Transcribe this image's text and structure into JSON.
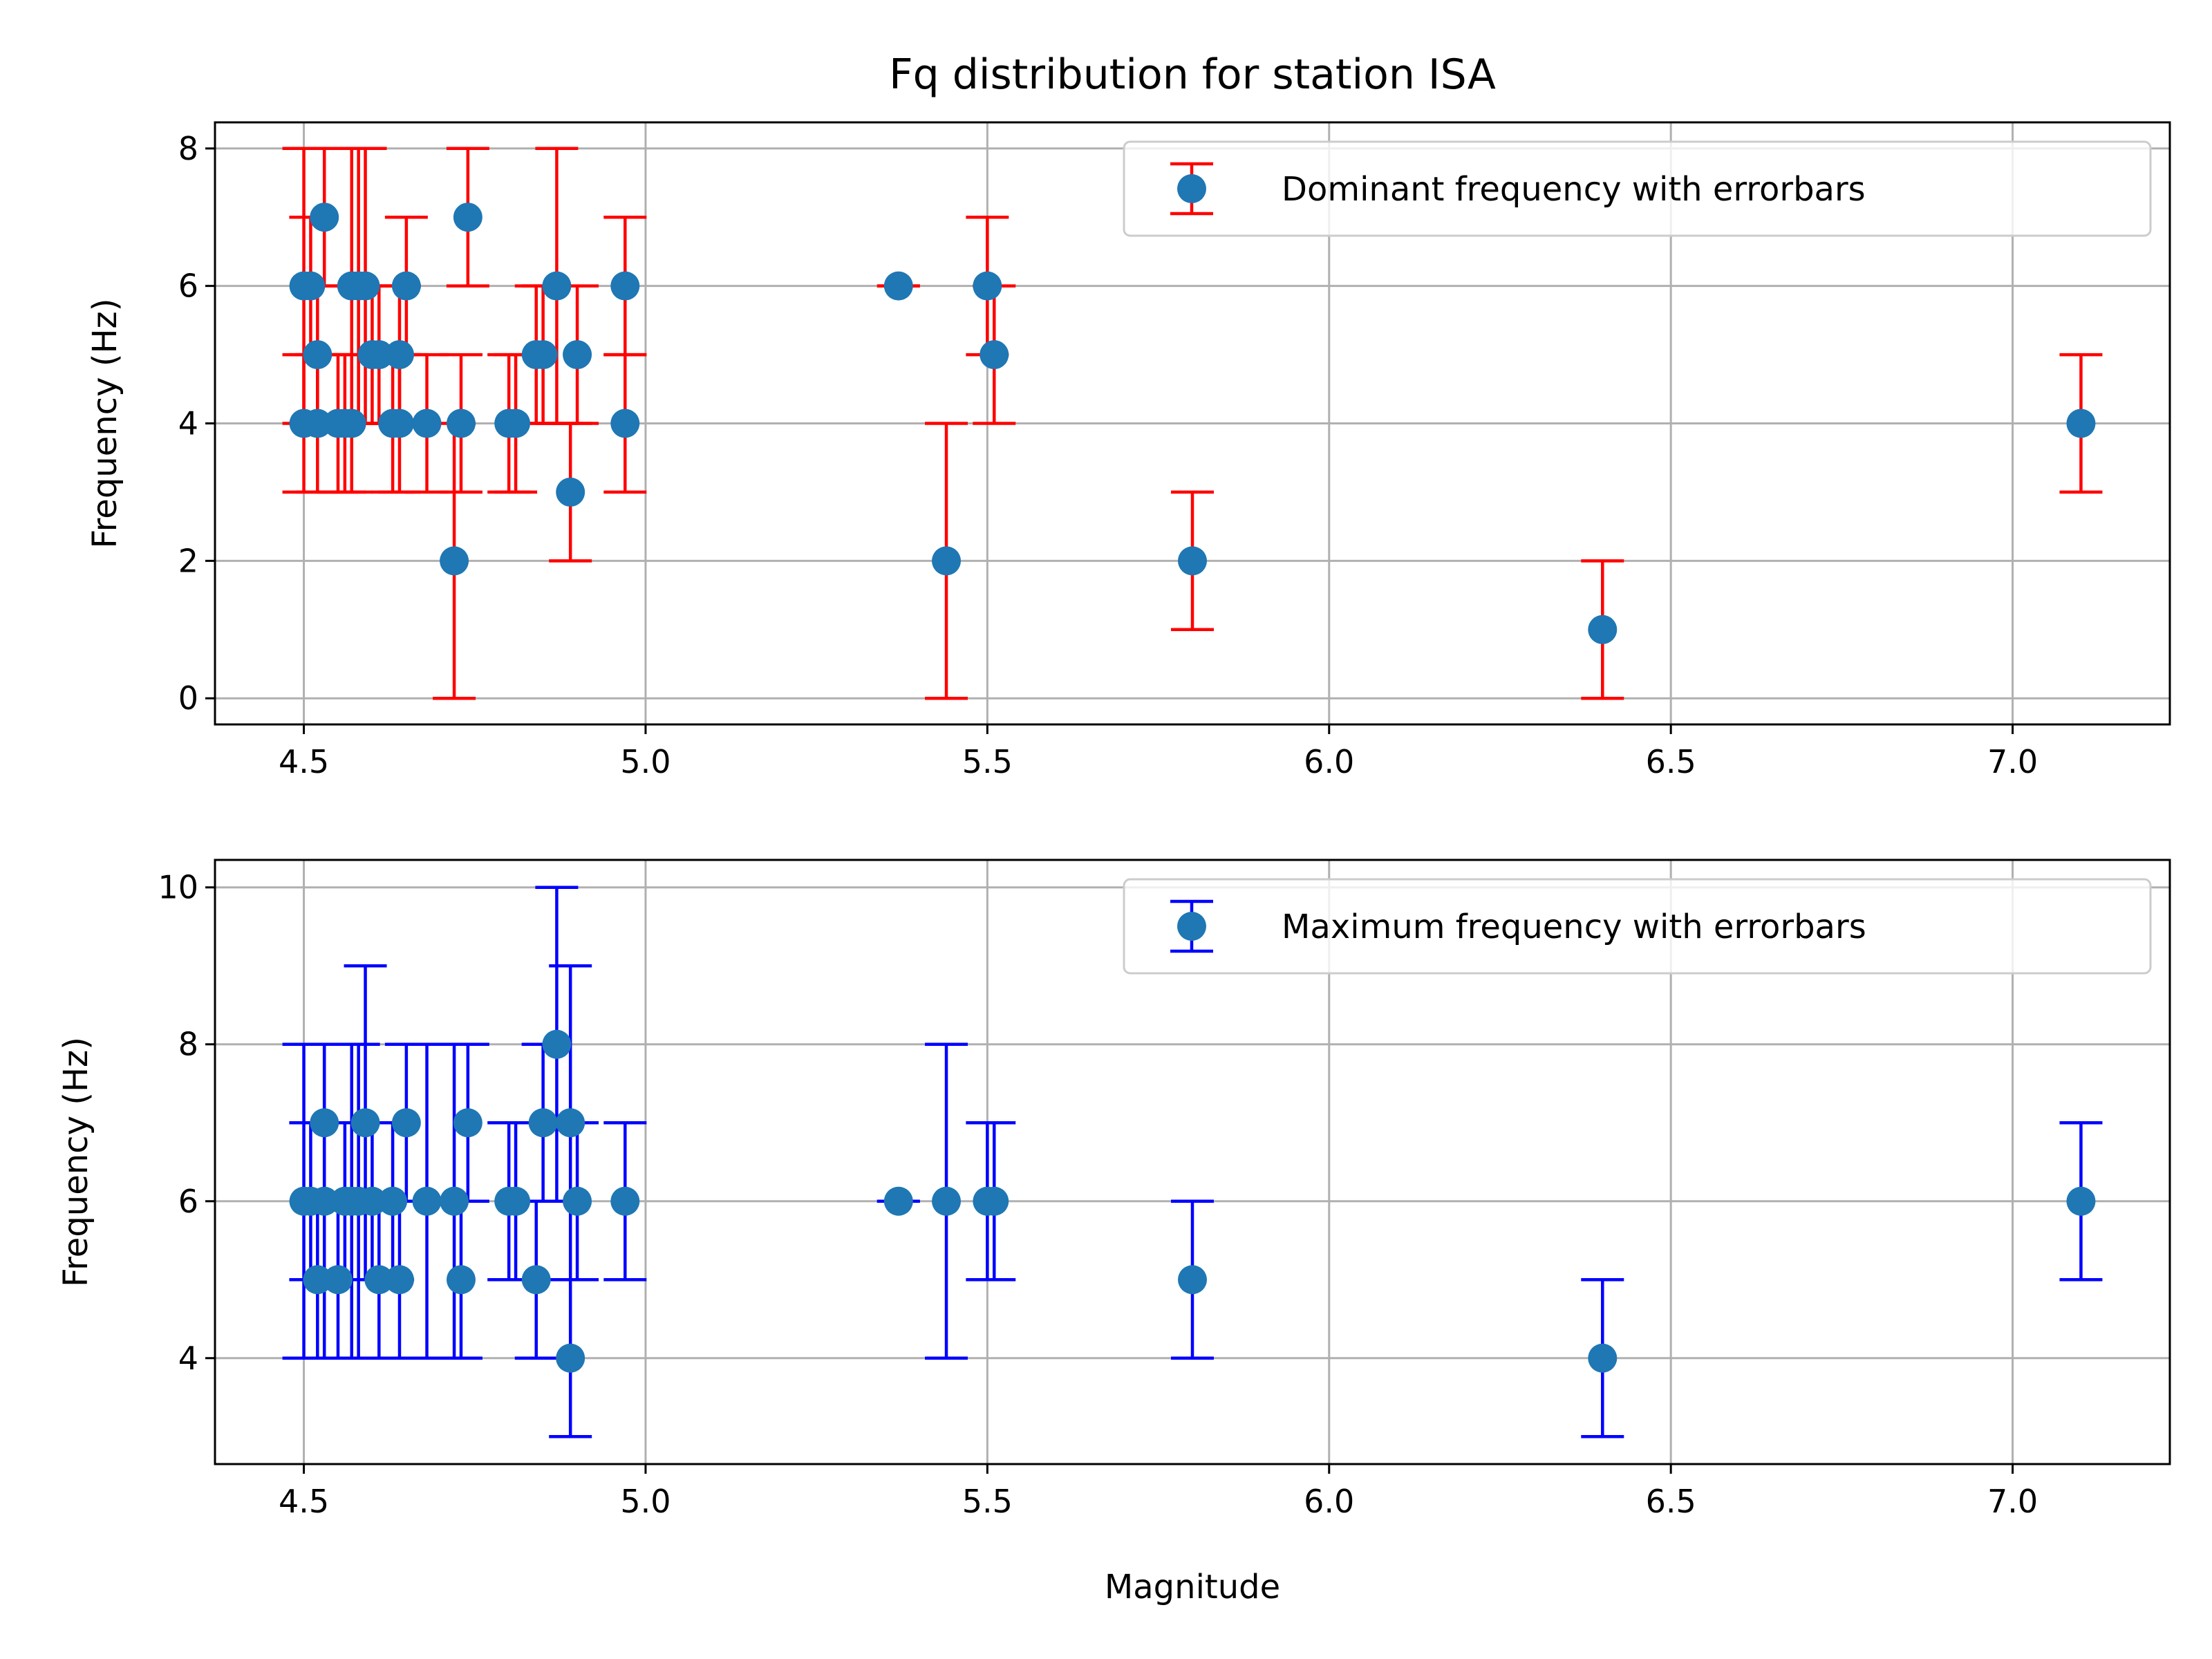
{
  "chart_data": [
    {
      "type": "scatter",
      "title": "Fq distribution for station ISA",
      "xlabel": "",
      "ylabel": "Frequency (Hz)",
      "xlim": [
        4.37,
        7.23
      ],
      "ylim": [
        -0.38,
        8.38
      ],
      "xticks": [
        4.5,
        5.0,
        5.5,
        6.0,
        6.5,
        7.0
      ],
      "xtick_labels": [
        "4.5",
        "5.0",
        "5.5",
        "6.0",
        "6.5",
        "7.0"
      ],
      "yticks": [
        0,
        2,
        4,
        6,
        8
      ],
      "ytick_labels": [
        "0",
        "2",
        "4",
        "6",
        "8"
      ],
      "grid": true,
      "legend": {
        "text": "Dominant frequency with errorbars",
        "placement": "top-right"
      },
      "errorbar_color": "#ff0000",
      "marker_color": "#1f77b4",
      "points": [
        {
          "x": 4.5,
          "y": 6,
          "err": 2
        },
        {
          "x": 4.5,
          "y": 4,
          "err": 1
        },
        {
          "x": 4.51,
          "y": 6,
          "err": 1
        },
        {
          "x": 4.52,
          "y": 5,
          "err": 1
        },
        {
          "x": 4.52,
          "y": 4,
          "err": 1
        },
        {
          "x": 4.53,
          "y": 7,
          "err": 1
        },
        {
          "x": 4.55,
          "y": 4,
          "err": 1
        },
        {
          "x": 4.56,
          "y": 4,
          "err": 1
        },
        {
          "x": 4.57,
          "y": 6,
          "err": 2
        },
        {
          "x": 4.57,
          "y": 4,
          "err": 1
        },
        {
          "x": 4.58,
          "y": 6,
          "err": 2
        },
        {
          "x": 4.59,
          "y": 6,
          "err": 2
        },
        {
          "x": 4.6,
          "y": 5,
          "err": 1
        },
        {
          "x": 4.61,
          "y": 5,
          "err": 1
        },
        {
          "x": 4.63,
          "y": 4,
          "err": 1
        },
        {
          "x": 4.64,
          "y": 5,
          "err": 1
        },
        {
          "x": 4.64,
          "y": 4,
          "err": 1
        },
        {
          "x": 4.65,
          "y": 6,
          "err": 1
        },
        {
          "x": 4.68,
          "y": 4,
          "err": 1
        },
        {
          "x": 4.72,
          "y": 2,
          "err": 2
        },
        {
          "x": 4.73,
          "y": 4,
          "err": 1
        },
        {
          "x": 4.74,
          "y": 7,
          "err": 1
        },
        {
          "x": 4.8,
          "y": 4,
          "err": 1
        },
        {
          "x": 4.81,
          "y": 4,
          "err": 1
        },
        {
          "x": 4.84,
          "y": 5,
          "err": 1
        },
        {
          "x": 4.85,
          "y": 5,
          "err": 1
        },
        {
          "x": 4.87,
          "y": 6,
          "err": 2
        },
        {
          "x": 4.89,
          "y": 3,
          "err": 1
        },
        {
          "x": 4.9,
          "y": 5,
          "err": 1
        },
        {
          "x": 4.97,
          "y": 6,
          "err": 1
        },
        {
          "x": 4.97,
          "y": 4,
          "err": 1
        },
        {
          "x": 5.37,
          "y": 6,
          "err": 0
        },
        {
          "x": 5.44,
          "y": 2,
          "err": 2
        },
        {
          "x": 5.5,
          "y": 6,
          "err": 1
        },
        {
          "x": 5.51,
          "y": 5,
          "err": 1
        },
        {
          "x": 5.8,
          "y": 2,
          "err": 1
        },
        {
          "x": 6.4,
          "y": 1,
          "err": 1
        },
        {
          "x": 7.1,
          "y": 4,
          "err": 1
        }
      ]
    },
    {
      "type": "scatter",
      "title": "",
      "xlabel": "Magnitude",
      "ylabel": "Frequency (Hz)",
      "xlim": [
        4.37,
        7.23
      ],
      "ylim": [
        2.65,
        10.35
      ],
      "xticks": [
        4.5,
        5.0,
        5.5,
        6.0,
        6.5,
        7.0
      ],
      "xtick_labels": [
        "4.5",
        "5.0",
        "5.5",
        "6.0",
        "6.5",
        "7.0"
      ],
      "yticks": [
        4,
        6,
        8,
        10
      ],
      "ytick_labels": [
        "4",
        "6",
        "8",
        "10"
      ],
      "grid": true,
      "legend": {
        "text": "Maximum frequency with errorbars",
        "placement": "top-right"
      },
      "errorbar_color": "#0000ff",
      "marker_color": "#1f77b4",
      "points": [
        {
          "x": 4.5,
          "y": 6,
          "err": 2
        },
        {
          "x": 4.51,
          "y": 6,
          "err": 1
        },
        {
          "x": 4.52,
          "y": 5,
          "err": 1
        },
        {
          "x": 4.53,
          "y": 7,
          "err": 1
        },
        {
          "x": 4.53,
          "y": 6,
          "err": 2
        },
        {
          "x": 4.55,
          "y": 5,
          "err": 1
        },
        {
          "x": 4.56,
          "y": 6,
          "err": 1
        },
        {
          "x": 4.57,
          "y": 6,
          "err": 2
        },
        {
          "x": 4.58,
          "y": 6,
          "err": 2
        },
        {
          "x": 4.59,
          "y": 7,
          "err": 2
        },
        {
          "x": 4.6,
          "y": 6,
          "err": 1
        },
        {
          "x": 4.61,
          "y": 5,
          "err": 1
        },
        {
          "x": 4.63,
          "y": 6,
          "err": 1
        },
        {
          "x": 4.64,
          "y": 5,
          "err": 1
        },
        {
          "x": 4.65,
          "y": 7,
          "err": 1
        },
        {
          "x": 4.68,
          "y": 6,
          "err": 2
        },
        {
          "x": 4.72,
          "y": 6,
          "err": 2
        },
        {
          "x": 4.73,
          "y": 5,
          "err": 1
        },
        {
          "x": 4.74,
          "y": 7,
          "err": 1
        },
        {
          "x": 4.8,
          "y": 6,
          "err": 1
        },
        {
          "x": 4.81,
          "y": 6,
          "err": 1
        },
        {
          "x": 4.84,
          "y": 5,
          "err": 1
        },
        {
          "x": 4.85,
          "y": 7,
          "err": 1
        },
        {
          "x": 4.87,
          "y": 8,
          "err": 2
        },
        {
          "x": 4.89,
          "y": 7,
          "err": 2
        },
        {
          "x": 4.89,
          "y": 4,
          "err": 1
        },
        {
          "x": 4.9,
          "y": 6,
          "err": 1
        },
        {
          "x": 4.97,
          "y": 6,
          "err": 1
        },
        {
          "x": 5.37,
          "y": 6,
          "err": 0
        },
        {
          "x": 5.44,
          "y": 6,
          "err": 2
        },
        {
          "x": 5.5,
          "y": 6,
          "err": 1
        },
        {
          "x": 5.51,
          "y": 6,
          "err": 1
        },
        {
          "x": 5.8,
          "y": 5,
          "err": 1
        },
        {
          "x": 6.4,
          "y": 4,
          "err": 1
        },
        {
          "x": 7.1,
          "y": 6,
          "err": 1
        }
      ]
    }
  ]
}
